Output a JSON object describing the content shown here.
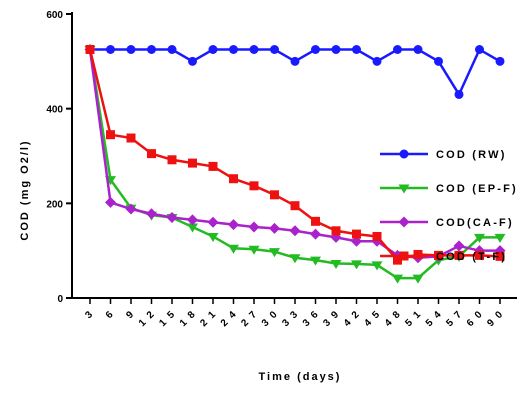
{
  "chart_data": {
    "type": "line",
    "xlabel": "Time (days)",
    "ylabel": "COD (mg O2/l)",
    "ylim": [
      0,
      600
    ],
    "yticks": [
      0,
      200,
      400,
      600
    ],
    "categories": [
      "3",
      "6",
      "9",
      "12",
      "15",
      "18",
      "21",
      "24",
      "27",
      "30",
      "33",
      "36",
      "39",
      "42",
      "45",
      "48",
      "51",
      "54",
      "57",
      "60",
      "90"
    ],
    "legend_position": "right",
    "series": [
      {
        "name": "COD (RW)",
        "color": "#1a1aff",
        "marker": "circle",
        "values": [
          525,
          525,
          525,
          525,
          525,
          500,
          525,
          525,
          525,
          525,
          500,
          525,
          525,
          525,
          500,
          525,
          525,
          500,
          430,
          525,
          500
        ]
      },
      {
        "name": "COD (EP-F)",
        "color": "#22bb22",
        "marker": "triangle-down",
        "values": [
          525,
          250,
          190,
          175,
          170,
          150,
          130,
          105,
          103,
          98,
          85,
          80,
          73,
          72,
          70,
          42,
          42,
          80,
          88,
          128,
          128
        ]
      },
      {
        "name": "COD(CA-F)",
        "color": "#aa22cc",
        "marker": "diamond",
        "values": [
          525,
          202,
          188,
          178,
          170,
          165,
          160,
          155,
          150,
          147,
          142,
          135,
          128,
          120,
          120,
          90,
          85,
          88,
          110,
          100,
          100
        ]
      },
      {
        "name": "COD (T-F)",
        "color": "#ee1111",
        "marker": "square",
        "values": [
          525,
          345,
          338,
          305,
          292,
          285,
          278,
          252,
          237,
          218,
          195,
          162,
          142,
          135,
          130,
          80,
          92,
          90,
          90,
          90,
          88
        ]
      }
    ]
  }
}
